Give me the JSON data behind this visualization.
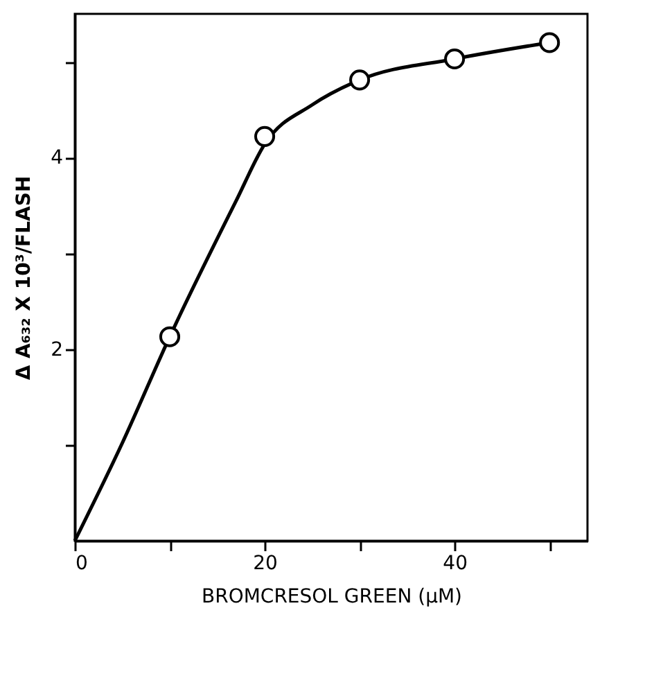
{
  "chart_data": {
    "type": "scatter",
    "xlabel": "BROMCRESOL GREEN (μM)",
    "ylabel": "Δ A₆₃₂ X 10³/FLASH",
    "xlim": [
      0,
      54
    ],
    "ylim": [
      0,
      5.5
    ],
    "xticks": [
      0,
      {
        "value": 10,
        "label": null
      },
      20,
      {
        "value": 30,
        "label": null
      },
      40,
      {
        "value": 50,
        "label": null
      }
    ],
    "yticks": [
      {
        "value": 1,
        "label": null
      },
      2,
      {
        "value": 3,
        "label": null
      },
      4,
      {
        "value": 5,
        "label": null
      }
    ],
    "grid": false,
    "series": [
      {
        "color": "#000000",
        "marker": "circle",
        "x": [
          10,
          20,
          30,
          40,
          50
        ],
        "values": [
          2.13,
          4.22,
          4.81,
          5.03,
          5.2
        ]
      },
      {
        "type": "line",
        "color": "#000000",
        "line_style": "solid",
        "marker": "none",
        "x": [
          0,
          5,
          10,
          17,
          20,
          25,
          30,
          40,
          50
        ],
        "values": [
          0,
          1.02,
          2.13,
          3.55,
          4.14,
          4.55,
          4.81,
          5.03,
          5.2
        ]
      }
    ]
  }
}
